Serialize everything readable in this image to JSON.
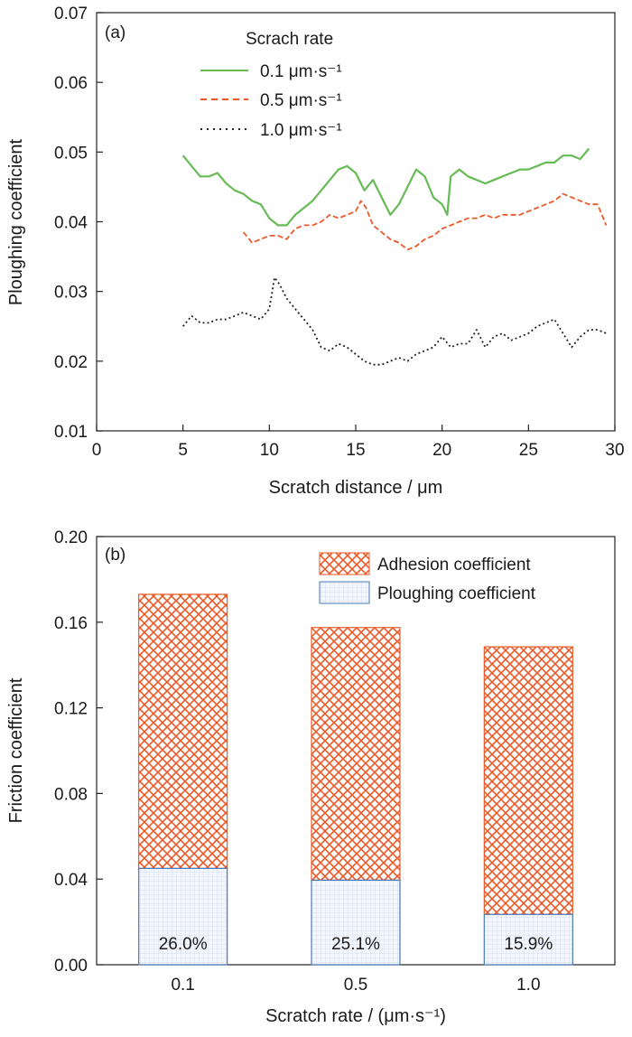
{
  "chart_data": [
    {
      "type": "line",
      "panel_label": "(a)",
      "xlabel": "Scratch distance / μm",
      "ylabel": "Ploughing coefficient",
      "xlim": [
        0,
        30
      ],
      "ylim": [
        0.01,
        0.07
      ],
      "x_ticks": [
        "0",
        "5",
        "10",
        "15",
        "20",
        "25",
        "30"
      ],
      "y_ticks": [
        "0.01",
        "0.02",
        "0.03",
        "0.04",
        "0.05",
        "0.06",
        "0.07"
      ],
      "grid": false,
      "legend_title": "Scrach rate",
      "legend_position": "top-center",
      "colors": {
        "s1": "#66bb55",
        "s2": "#e85a2a",
        "s3": "#222222"
      },
      "series": [
        {
          "name": "0.1 μm·s⁻¹",
          "style": "solid",
          "x": [
            5.0,
            5.5,
            6.0,
            6.5,
            7.0,
            7.5,
            8.0,
            8.5,
            9.0,
            9.5,
            10.0,
            10.5,
            11.0,
            11.5,
            12.0,
            12.5,
            13.0,
            13.5,
            14.0,
            14.5,
            15.0,
            15.5,
            16.0,
            16.5,
            17.0,
            17.5,
            18.0,
            18.5,
            19.0,
            19.5,
            20.0,
            20.3,
            20.5,
            21.0,
            21.5,
            22.0,
            22.5,
            23.0,
            23.5,
            24.0,
            24.5,
            25.0,
            25.5,
            26.0,
            26.5,
            27.0,
            27.5,
            28.0,
            28.5
          ],
          "y": [
            0.0495,
            0.048,
            0.0465,
            0.0465,
            0.047,
            0.0455,
            0.0445,
            0.044,
            0.043,
            0.0425,
            0.0405,
            0.0395,
            0.0395,
            0.041,
            0.042,
            0.043,
            0.0445,
            0.046,
            0.0475,
            0.048,
            0.047,
            0.0445,
            0.046,
            0.0435,
            0.041,
            0.0425,
            0.045,
            0.0475,
            0.0465,
            0.0435,
            0.0425,
            0.041,
            0.0465,
            0.0475,
            0.0465,
            0.046,
            0.0455,
            0.046,
            0.0465,
            0.047,
            0.0475,
            0.0475,
            0.048,
            0.0485,
            0.0485,
            0.0495,
            0.0495,
            0.049,
            0.0505
          ]
        },
        {
          "name": "0.5 μm·s⁻¹",
          "style": "dashed",
          "x": [
            8.5,
            9.0,
            9.5,
            10.0,
            10.5,
            11.0,
            11.5,
            12.0,
            12.5,
            13.0,
            13.5,
            14.0,
            14.5,
            15.0,
            15.3,
            15.6,
            16.0,
            16.5,
            17.0,
            17.5,
            18.0,
            18.5,
            19.0,
            19.5,
            20.0,
            20.5,
            21.0,
            21.5,
            22.0,
            22.5,
            23.0,
            23.5,
            24.0,
            24.5,
            25.0,
            25.5,
            26.0,
            26.5,
            27.0,
            27.5,
            28.0,
            28.5,
            29.0,
            29.5
          ],
          "y": [
            0.0385,
            0.037,
            0.0375,
            0.038,
            0.038,
            0.0375,
            0.039,
            0.0395,
            0.0395,
            0.04,
            0.041,
            0.0405,
            0.041,
            0.0415,
            0.043,
            0.042,
            0.0395,
            0.0385,
            0.0375,
            0.037,
            0.036,
            0.0365,
            0.0375,
            0.038,
            0.039,
            0.0395,
            0.04,
            0.0405,
            0.0405,
            0.041,
            0.0405,
            0.041,
            0.041,
            0.041,
            0.0415,
            0.042,
            0.0425,
            0.043,
            0.044,
            0.0435,
            0.043,
            0.0425,
            0.0425,
            0.0395
          ]
        },
        {
          "name": "1.0 μm·s⁻¹",
          "style": "dotted",
          "x": [
            5.0,
            5.5,
            6.0,
            6.5,
            7.0,
            7.5,
            8.0,
            8.5,
            9.0,
            9.5,
            10.0,
            10.3,
            10.6,
            11.0,
            11.5,
            12.0,
            12.5,
            13.0,
            13.5,
            14.0,
            14.5,
            15.0,
            15.5,
            16.0,
            16.5,
            17.0,
            17.5,
            18.0,
            18.5,
            19.0,
            19.5,
            20.0,
            20.5,
            21.0,
            21.5,
            22.0,
            22.5,
            23.0,
            23.5,
            24.0,
            24.5,
            25.0,
            25.5,
            26.0,
            26.5,
            27.0,
            27.5,
            28.0,
            28.5,
            29.0,
            29.5
          ],
          "y": [
            0.025,
            0.0265,
            0.0255,
            0.0255,
            0.026,
            0.026,
            0.0265,
            0.027,
            0.0265,
            0.026,
            0.0275,
            0.032,
            0.031,
            0.029,
            0.0275,
            0.026,
            0.0245,
            0.022,
            0.0215,
            0.0225,
            0.022,
            0.021,
            0.02,
            0.0195,
            0.0195,
            0.02,
            0.0205,
            0.02,
            0.021,
            0.0215,
            0.022,
            0.0235,
            0.022,
            0.0225,
            0.0225,
            0.0245,
            0.022,
            0.0235,
            0.024,
            0.023,
            0.0235,
            0.024,
            0.025,
            0.0255,
            0.026,
            0.024,
            0.022,
            0.0235,
            0.0245,
            0.0245,
            0.024
          ]
        }
      ]
    },
    {
      "type": "bar",
      "stacked": true,
      "panel_label": "(b)",
      "xlabel": "Scratch rate / (μm·s⁻¹)",
      "ylabel": "Friction coefficient",
      "ylim": [
        0,
        0.2
      ],
      "y_ticks": [
        "0.00",
        "0.04",
        "0.08",
        "0.12",
        "0.16",
        "0.20"
      ],
      "categories": [
        "0.1",
        "0.5",
        "1.0"
      ],
      "grid": false,
      "legend_position": "top-right",
      "colors": {
        "adhesion": "#e85a2a",
        "ploughing_fill": "#eef2fa",
        "ploughing_edge": "#4a7ab8"
      },
      "series": [
        {
          "name": "Ploughing coefficient",
          "values": [
            0.045,
            0.0395,
            0.0235
          ]
        },
        {
          "name": "Adhesion coefficient",
          "values": [
            0.128,
            0.118,
            0.125
          ]
        }
      ],
      "annotations": [
        "26.0%",
        "25.1%",
        "15.9%"
      ]
    }
  ]
}
